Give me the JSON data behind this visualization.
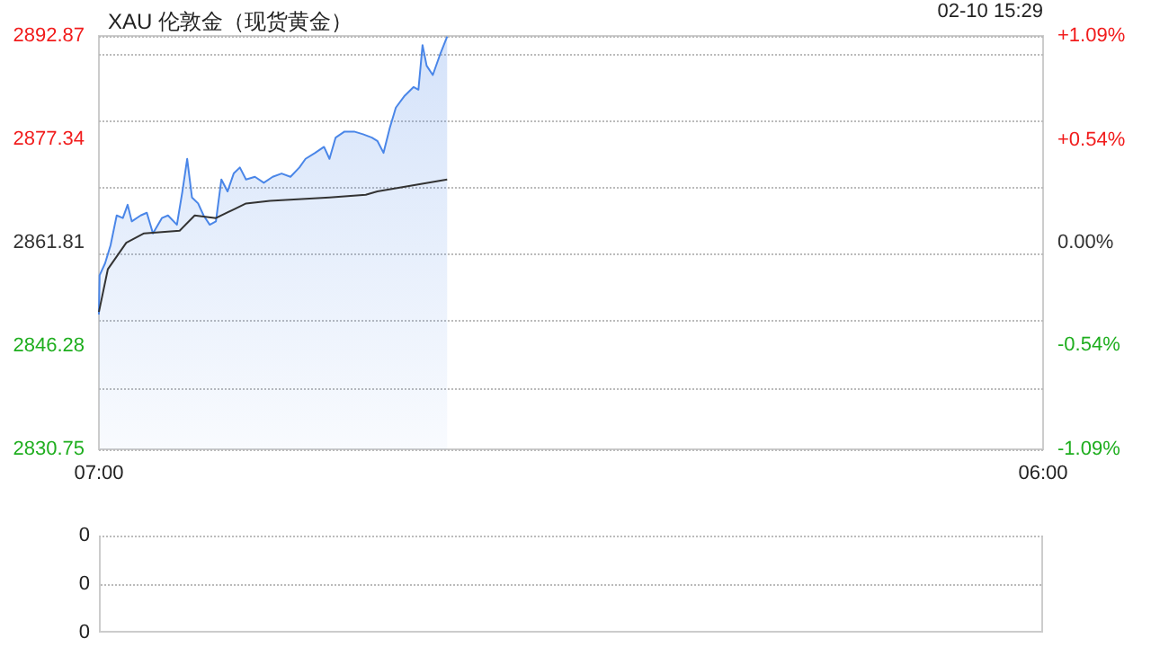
{
  "chart_data": [
    {
      "type": "area",
      "title": "XAU 伦敦金（现货黄金）",
      "annotations": [
        "02-10 15:29"
      ],
      "xlim": [
        "--02-10T07:00",
        "--02-11T06:00"
      ],
      "xticks": [
        {
          "value": "--02-10T07:00",
          "label": "07:00"
        },
        {
          "value": "--02-11T06:00",
          "label": "06:00"
        }
      ],
      "ylim": [
        2830.75,
        2892.87
      ],
      "yticks": [
        2830.75,
        2846.28,
        2861.81,
        2877.34,
        2892.87
      ],
      "y2lim": [
        -1.09,
        1.09
      ],
      "y2ticks": [
        {
          "value": -1.09,
          "label": "-1.09%"
        },
        {
          "value": -0.54,
          "label": "-0.54%"
        },
        {
          "value": 0,
          "label": "0.00%"
        },
        {
          "value": 0.54,
          "label": "+0.54%"
        },
        {
          "value": 1.09,
          "label": "+1.09%"
        }
      ],
      "grid": "y",
      "marker": "none",
      "series": [
        {
          "color": "#4a86e8",
          "x": [
            "--02-10T07:00",
            "--02-10T07:01",
            "--02-10T07:09",
            "--02-10T07:17",
            "--02-10T07:26",
            "--02-10T07:35",
            "--02-10T07:42",
            "--02-10T07:48",
            "--02-10T08:01",
            "--02-10T08:10",
            "--02-10T08:19",
            "--02-10T08:32",
            "--02-10T08:41",
            "--02-10T08:54",
            "--02-10T09:02",
            "--02-10T09:09",
            "--02-10T09:16",
            "--02-10T09:25",
            "--02-10T09:33",
            "--02-10T09:42",
            "--02-10T09:51",
            "--02-10T09:59",
            "--02-10T10:08",
            "--02-10T10:17",
            "--02-10T10:26",
            "--02-10T10:35",
            "--02-10T10:48",
            "--02-10T11:01",
            "--02-10T11:14",
            "--02-10T11:27",
            "--02-10T11:40",
            "--02-10T11:53",
            "--02-10T12:02",
            "--02-10T12:16",
            "--02-10T12:29",
            "--02-10T12:37",
            "--02-10T12:46",
            "--02-10T12:59",
            "--02-10T13:13",
            "--02-10T13:26",
            "--02-10T13:39",
            "--02-10T13:47",
            "--02-10T13:56",
            "--02-10T14:05",
            "--02-10T14:14",
            "--02-10T14:27",
            "--02-10T14:40",
            "--02-10T14:47",
            "--02-10T14:53",
            "--02-10T14:59",
            "--02-10T15:08",
            "--02-10T15:19",
            "--02-10T15:29"
          ],
          "values": [
            2851.0,
            2856.9,
            2858.7,
            2861.4,
            2865.9,
            2865.5,
            2867.5,
            2865.0,
            2865.9,
            2866.3,
            2863.2,
            2865.5,
            2865.9,
            2864.5,
            2869.5,
            2874.4,
            2868.6,
            2867.7,
            2865.9,
            2864.5,
            2865.0,
            2871.3,
            2869.5,
            2872.2,
            2873.1,
            2871.3,
            2871.7,
            2870.8,
            2871.7,
            2872.2,
            2871.7,
            2873.1,
            2874.4,
            2875.3,
            2876.2,
            2874.4,
            2877.6,
            2878.5,
            2878.5,
            2878.1,
            2877.6,
            2877.1,
            2875.3,
            2879.0,
            2882.1,
            2883.9,
            2885.2,
            2884.8,
            2891.5,
            2888.4,
            2887.0,
            2890.2,
            2892.8
          ]
        },
        {
          "type": "line",
          "color": "#333333",
          "x": [
            "--02-10T07:00",
            "--02-10T07:13",
            "--02-10T07:40",
            "--02-10T08:06",
            "--02-10T08:58",
            "--02-10T09:20",
            "--02-10T09:51",
            "--02-10T10:17",
            "--02-10T10:35",
            "--02-10T11:10",
            "--02-10T12:37",
            "--02-10T13:30",
            "--02-10T13:47",
            "--02-10T15:29"
          ],
          "values": [
            2851.4,
            2857.8,
            2861.8,
            2863.2,
            2863.6,
            2865.9,
            2865.5,
            2866.8,
            2867.7,
            2868.1,
            2868.6,
            2869.0,
            2869.5,
            2871.3
          ]
        }
      ]
    },
    {
      "type": "other",
      "annotations": [
        "0",
        "0",
        "0"
      ]
    }
  ]
}
